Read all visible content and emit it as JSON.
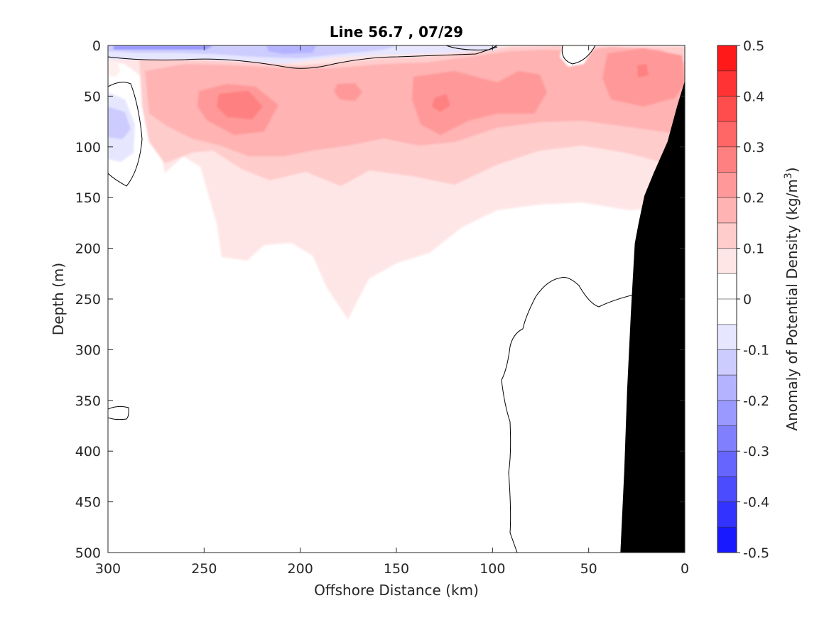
{
  "chart_data": {
    "type": "heatmap",
    "title": "Line 56.7 , 07/29",
    "xlabel": "Offshore Distance (km)",
    "ylabel": "Depth (m)",
    "colorbar_label": "Anomaly of Potential Density (kg/m",
    "colorbar_label_sup": "3",
    "colorbar_label_end": ")",
    "xlim": [
      300,
      0
    ],
    "ylim": [
      0,
      500
    ],
    "x_ticks": [
      300,
      250,
      200,
      150,
      100,
      50,
      0
    ],
    "x_tick_labels": [
      "300",
      "250",
      "200",
      "150",
      "100",
      "50",
      "0"
    ],
    "y_ticks": [
      0,
      50,
      100,
      150,
      200,
      250,
      300,
      350,
      400,
      450,
      500
    ],
    "y_tick_labels": [
      "0",
      "50",
      "100",
      "150",
      "200",
      "250",
      "300",
      "350",
      "400",
      "450",
      "500"
    ],
    "colorbar_ticks": [
      0.5,
      0.4,
      0.3,
      0.2,
      0.1,
      0,
      -0.1,
      -0.2,
      -0.3,
      -0.4,
      -0.5
    ],
    "colorbar_tick_labels": [
      "0.5",
      "0.4",
      "0.3",
      "0.2",
      "0.1",
      "0",
      "-0.1",
      "-0.2",
      "-0.3",
      "-0.4",
      "-0.5"
    ],
    "clim": [
      -0.5,
      0.5
    ],
    "contour_step": 0.05,
    "colors": {
      "background": "#ffffff",
      "bathymetry": "#000000",
      "contour_zero": "#000000"
    },
    "bathymetry": [
      {
        "x": 0,
        "y": 35
      },
      {
        "x": 4,
        "y": 60
      },
      {
        "x": 9,
        "y": 95
      },
      {
        "x": 16,
        "y": 125
      },
      {
        "x": 21,
        "y": 148
      },
      {
        "x": 24,
        "y": 175
      },
      {
        "x": 26,
        "y": 195
      },
      {
        "x": 28,
        "y": 262
      },
      {
        "x": 30,
        "y": 340
      },
      {
        "x": 31.5,
        "y": 420
      },
      {
        "x": 33.5,
        "y": 500
      }
    ]
  }
}
